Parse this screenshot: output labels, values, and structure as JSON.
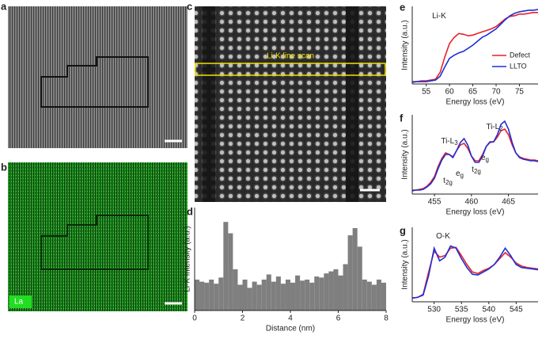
{
  "images": [
    {
      "label": "a"
    },
    {
      "label": "b",
      "tag": "La"
    },
    {
      "label": "c",
      "annotation": "Li-K line scan"
    }
  ],
  "chart_data": [
    {
      "type": "histogram",
      "panel_label": "d",
      "xlabel": "Distance (nm)",
      "ylabel": "Li-K intensity (a.u.)",
      "color": "#7f7f7f",
      "bins": [
        0,
        0.2,
        0.4,
        0.6,
        0.8,
        1,
        1.2,
        1.4,
        1.6,
        1.8,
        2,
        2.2,
        2.4,
        2.6,
        2.8,
        3,
        3.2,
        3.4,
        3.6,
        3.8,
        4,
        4.2,
        4.4,
        4.6,
        4.8,
        5,
        5.2,
        5.4,
        5.6,
        5.8,
        6,
        6.2,
        6.4,
        6.6,
        6.8,
        7,
        7.2,
        7.4,
        7.6,
        7.8,
        8
      ],
      "values": [
        0.3,
        0.28,
        0.27,
        0.3,
        0.26,
        0.32,
        0.86,
        0.75,
        0.4,
        0.25,
        0.3,
        0.22,
        0.28,
        0.25,
        0.3,
        0.35,
        0.28,
        0.33,
        0.26,
        0.3,
        0.27,
        0.34,
        0.29,
        0.3,
        0.27,
        0.33,
        0.32,
        0.36,
        0.38,
        0.4,
        0.34,
        0.45,
        0.73,
        0.8,
        0.62,
        0.3,
        0.28,
        0.25,
        0.3,
        0.27
      ],
      "xlim": [
        0,
        8
      ],
      "xticks": [
        0,
        2,
        4,
        6,
        8
      ],
      "ylim": [
        0,
        1
      ]
    },
    {
      "type": "line",
      "panel_label": "e",
      "xlabel": "Energy loss (eV)",
      "ylabel": "Intensity (a.u.)",
      "x": [
        52,
        53,
        54,
        55,
        56,
        57,
        58,
        59,
        60,
        61,
        62,
        63,
        64,
        65,
        66,
        67,
        68,
        69,
        70,
        71,
        72,
        73,
        74,
        75,
        76,
        77,
        78,
        79
      ],
      "series": [
        {
          "name": "Defect",
          "color": "#e8202a",
          "values": [
            0.03,
            0.03,
            0.04,
            0.04,
            0.05,
            0.06,
            0.15,
            0.35,
            0.52,
            0.6,
            0.65,
            0.64,
            0.62,
            0.63,
            0.65,
            0.67,
            0.69,
            0.71,
            0.74,
            0.79,
            0.84,
            0.87,
            0.88,
            0.9,
            0.9,
            0.91,
            0.92,
            0.92
          ]
        },
        {
          "name": "LLTO",
          "color": "#1f2fd6",
          "values": [
            0.02,
            0.03,
            0.03,
            0.03,
            0.04,
            0.05,
            0.1,
            0.22,
            0.33,
            0.37,
            0.4,
            0.42,
            0.46,
            0.5,
            0.55,
            0.6,
            0.63,
            0.67,
            0.71,
            0.77,
            0.83,
            0.88,
            0.91,
            0.93,
            0.94,
            0.95,
            0.95,
            0.96
          ]
        }
      ],
      "annotations": [
        {
          "text": "Li-K"
        }
      ],
      "xlim": [
        52,
        79
      ],
      "xticks": [
        55,
        60,
        65,
        70,
        75
      ],
      "ylim": [
        0,
        1
      ],
      "legend": "right"
    },
    {
      "type": "line",
      "panel_label": "f",
      "xlabel": "Energy loss (eV)",
      "ylabel": "Intensity (a.u.)",
      "x": [
        452,
        452.5,
        453,
        453.5,
        454,
        454.5,
        455,
        455.5,
        456,
        456.5,
        457,
        457.5,
        458,
        458.5,
        459,
        459.5,
        460,
        460.5,
        461,
        461.5,
        462,
        462.5,
        463,
        463.5,
        464,
        464.5,
        465,
        465.5,
        466,
        466.5,
        467,
        467.5,
        468,
        468.5,
        469
      ],
      "series": [
        {
          "name": "Defect",
          "color": "#e8202a",
          "values": [
            0.05,
            0.05,
            0.06,
            0.07,
            0.1,
            0.15,
            0.22,
            0.35,
            0.45,
            0.52,
            0.5,
            0.47,
            0.55,
            0.62,
            0.64,
            0.58,
            0.48,
            0.42,
            0.42,
            0.5,
            0.6,
            0.65,
            0.66,
            0.72,
            0.8,
            0.82,
            0.75,
            0.62,
            0.52,
            0.47,
            0.45,
            0.44,
            0.43,
            0.43,
            0.42
          ]
        },
        {
          "name": "LLTO",
          "color": "#1f2fd6",
          "values": [
            0.04,
            0.05,
            0.05,
            0.06,
            0.09,
            0.13,
            0.2,
            0.32,
            0.43,
            0.5,
            0.5,
            0.46,
            0.55,
            0.65,
            0.7,
            0.62,
            0.48,
            0.4,
            0.4,
            0.48,
            0.6,
            0.66,
            0.66,
            0.75,
            0.88,
            0.92,
            0.82,
            0.65,
            0.52,
            0.46,
            0.44,
            0.43,
            0.42,
            0.42,
            0.41
          ]
        }
      ],
      "annotations": [
        {
          "text": "Ti-L",
          "sub": "3"
        },
        {
          "text": "Ti-L",
          "sub": "2"
        },
        {
          "text": "t",
          "sub": "2g"
        },
        {
          "text": "e",
          "sub": "g"
        },
        {
          "text": "t",
          "sub": "2g"
        },
        {
          "text": "e",
          "sub": "g"
        }
      ],
      "xlim": [
        452,
        469
      ],
      "xticks": [
        455,
        460,
        465
      ],
      "ylim": [
        0,
        1
      ]
    },
    {
      "type": "line",
      "panel_label": "g",
      "xlabel": "Energy loss (eV)",
      "ylabel": "Intensity (a.u.)",
      "x": [
        526,
        527,
        528,
        529,
        530,
        531,
        532,
        533,
        534,
        535,
        536,
        537,
        538,
        539,
        540,
        541,
        542,
        543,
        544,
        545,
        546,
        547,
        548,
        549
      ],
      "series": [
        {
          "name": "Defect",
          "color": "#e8202a",
          "values": [
            0.05,
            0.06,
            0.1,
            0.4,
            0.68,
            0.6,
            0.62,
            0.72,
            0.73,
            0.62,
            0.5,
            0.4,
            0.38,
            0.42,
            0.45,
            0.5,
            0.58,
            0.66,
            0.6,
            0.52,
            0.48,
            0.46,
            0.45,
            0.44
          ]
        },
        {
          "name": "LLTO",
          "color": "#1f2fd6",
          "values": [
            0.05,
            0.06,
            0.09,
            0.35,
            0.72,
            0.55,
            0.6,
            0.75,
            0.72,
            0.58,
            0.46,
            0.37,
            0.36,
            0.4,
            0.44,
            0.5,
            0.6,
            0.72,
            0.62,
            0.5,
            0.46,
            0.45,
            0.44,
            0.43
          ]
        }
      ],
      "annotations": [
        {
          "text": "O-K"
        }
      ],
      "xlim": [
        526,
        549
      ],
      "xticks": [
        530,
        535,
        540,
        545
      ],
      "ylim": [
        0,
        1
      ]
    }
  ]
}
